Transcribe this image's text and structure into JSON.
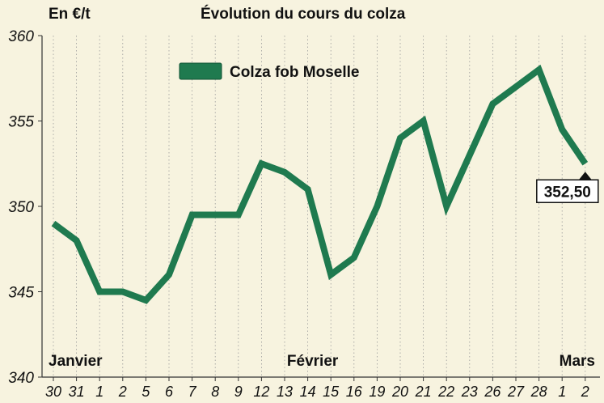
{
  "chart_data": {
    "type": "line",
    "title": "Évolution du cours du colza",
    "ylabel": "En €/t",
    "xlabel": "",
    "ylim": [
      340,
      360
    ],
    "yticks": [
      340,
      345,
      350,
      355,
      360
    ],
    "grid": "vertical dotted",
    "legend_position": "top-left",
    "categories": [
      "30",
      "31",
      "1",
      "2",
      "5",
      "6",
      "7",
      "8",
      "9",
      "12",
      "13",
      "14",
      "15",
      "16",
      "19",
      "20",
      "21",
      "22",
      "23",
      "26",
      "27",
      "28",
      "1",
      "2"
    ],
    "month_labels": [
      {
        "label": "Janvier",
        "at_index": 0
      },
      {
        "label": "Février",
        "at_index": 11
      },
      {
        "label": "Mars",
        "at_index": 22
      }
    ],
    "series": [
      {
        "name": "Colza fob Moselle",
        "color": "#1f7a4f",
        "values": [
          349,
          348,
          345,
          345,
          344.5,
          346,
          349.5,
          349.5,
          349.5,
          352.5,
          352,
          351,
          346,
          347,
          350,
          354,
          355,
          350,
          353,
          356,
          357,
          358,
          354.5,
          352.5
        ]
      }
    ],
    "last_value_label": "352,50"
  }
}
